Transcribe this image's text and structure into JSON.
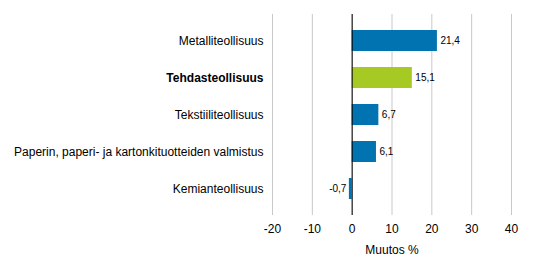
{
  "chart_data": {
    "type": "bar",
    "orientation": "horizontal",
    "categories": [
      "Metalliteollisuus",
      "Tehdasteollisuus",
      "Tekstiiliteollisuus",
      "Paperin, paperi- ja kartonkituotteiden valmistus",
      "Kemianteollisuus"
    ],
    "values": [
      21.4,
      15.1,
      6.7,
      6.1,
      -0.7
    ],
    "value_labels": [
      "21,4",
      "15,1",
      "6,7",
      "6,1",
      "-0,7"
    ],
    "colors": [
      "#0073b0",
      "#a6c924",
      "#0073b0",
      "#0073b0",
      "#0073b0"
    ],
    "x_label": "Muutos %",
    "xlim": [
      -20,
      40
    ],
    "xticks": [
      -20,
      -10,
      0,
      10,
      20,
      30,
      40
    ],
    "grid": true,
    "data_labels": true
  }
}
